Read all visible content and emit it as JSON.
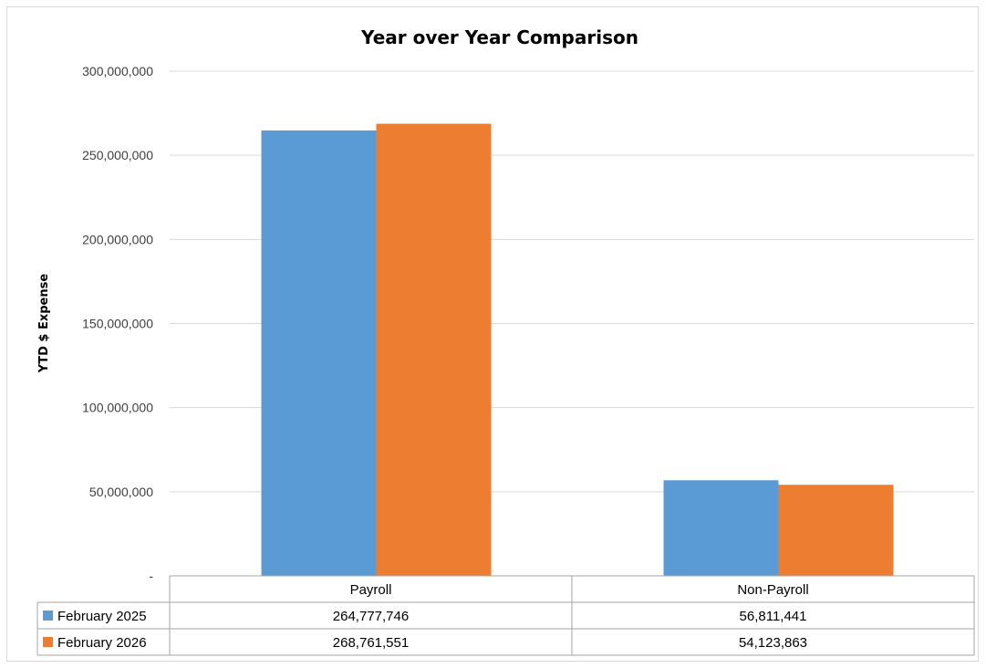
{
  "chart_data": {
    "type": "bar",
    "title": "Year over Year Comparison",
    "xlabel": "",
    "ylabel": "YTD $ Expense",
    "categories": [
      "Payroll",
      "Non-Payroll"
    ],
    "series": [
      {
        "name": "February 2025",
        "color": "#5b9bd5",
        "values": [
          264777746,
          56811441
        ],
        "labels": [
          "264,777,746",
          "56,811,441"
        ]
      },
      {
        "name": "February 2026",
        "color": "#ed7d31",
        "values": [
          268761551,
          54123863
        ],
        "labels": [
          "268,761,551",
          "54,123,863"
        ]
      }
    ],
    "ylim": [
      0,
      300000000
    ],
    "yticks": [
      0,
      50000000,
      100000000,
      150000000,
      200000000,
      250000000,
      300000000
    ],
    "ytick_labels": [
      "-",
      "50,000,000",
      "100,000,000",
      "150,000,000",
      "200,000,000",
      "250,000,000",
      "300,000,000"
    ],
    "grid": true,
    "legend": "data-table"
  }
}
